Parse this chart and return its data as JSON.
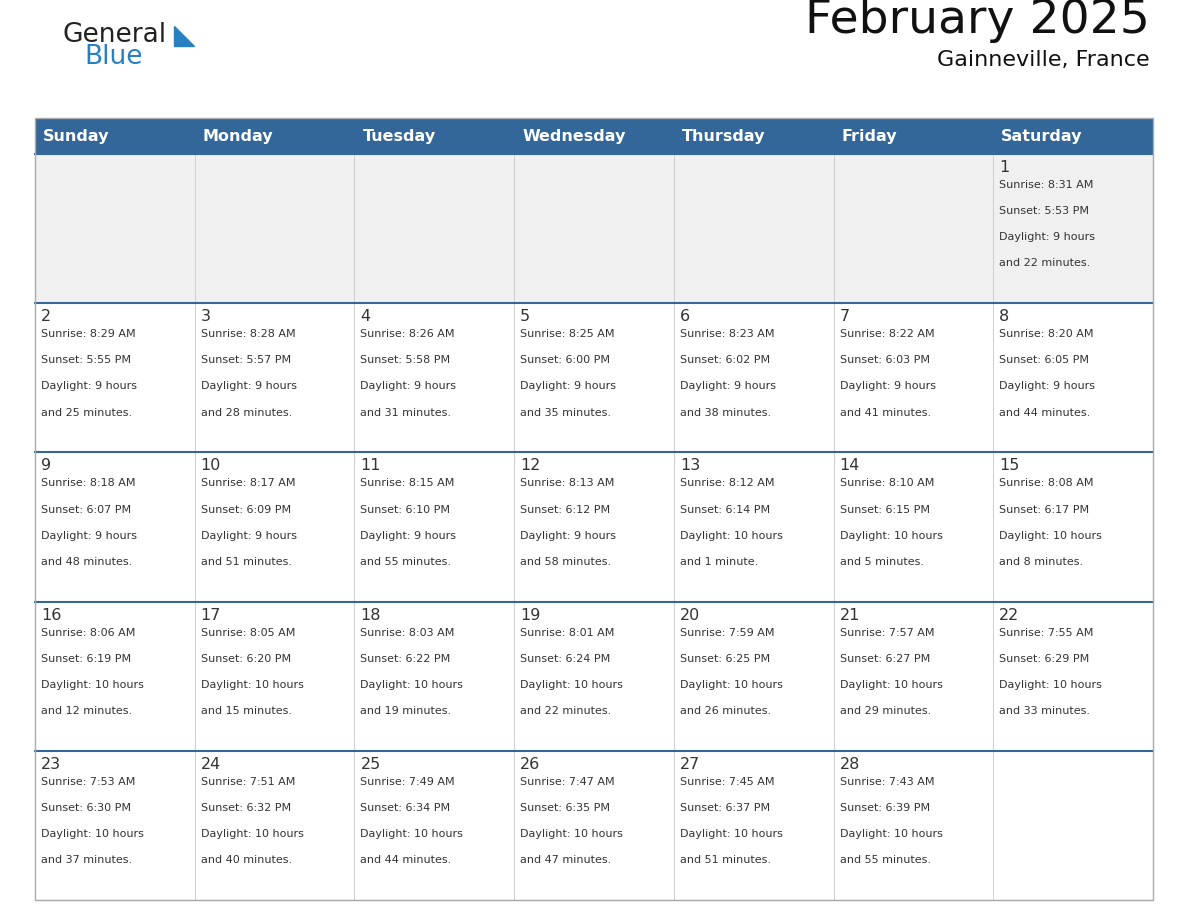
{
  "title": "February 2025",
  "subtitle": "Gainneville, France",
  "days_of_week": [
    "Sunday",
    "Monday",
    "Tuesday",
    "Wednesday",
    "Thursday",
    "Friday",
    "Saturday"
  ],
  "header_bg": "#336699",
  "header_text_color": "#FFFFFF",
  "cell_bg_light": "#F0F0F0",
  "cell_bg_white": "#FFFFFF",
  "divider_color": "#336699",
  "text_color": "#333333",
  "title_color": "#111111",
  "logo_color_general": "#222222",
  "logo_color_blue": "#2980C0",
  "logo_triangle_color": "#2980C0",
  "calendar_data": [
    [
      null,
      null,
      null,
      null,
      null,
      null,
      {
        "day": 1,
        "sunrise": "8:31 AM",
        "sunset": "5:53 PM",
        "daylight": "9 hours and 22 minutes."
      }
    ],
    [
      {
        "day": 2,
        "sunrise": "8:29 AM",
        "sunset": "5:55 PM",
        "daylight": "9 hours and 25 minutes."
      },
      {
        "day": 3,
        "sunrise": "8:28 AM",
        "sunset": "5:57 PM",
        "daylight": "9 hours and 28 minutes."
      },
      {
        "day": 4,
        "sunrise": "8:26 AM",
        "sunset": "5:58 PM",
        "daylight": "9 hours and 31 minutes."
      },
      {
        "day": 5,
        "sunrise": "8:25 AM",
        "sunset": "6:00 PM",
        "daylight": "9 hours and 35 minutes."
      },
      {
        "day": 6,
        "sunrise": "8:23 AM",
        "sunset": "6:02 PM",
        "daylight": "9 hours and 38 minutes."
      },
      {
        "day": 7,
        "sunrise": "8:22 AM",
        "sunset": "6:03 PM",
        "daylight": "9 hours and 41 minutes."
      },
      {
        "day": 8,
        "sunrise": "8:20 AM",
        "sunset": "6:05 PM",
        "daylight": "9 hours and 44 minutes."
      }
    ],
    [
      {
        "day": 9,
        "sunrise": "8:18 AM",
        "sunset": "6:07 PM",
        "daylight": "9 hours and 48 minutes."
      },
      {
        "day": 10,
        "sunrise": "8:17 AM",
        "sunset": "6:09 PM",
        "daylight": "9 hours and 51 minutes."
      },
      {
        "day": 11,
        "sunrise": "8:15 AM",
        "sunset": "6:10 PM",
        "daylight": "9 hours and 55 minutes."
      },
      {
        "day": 12,
        "sunrise": "8:13 AM",
        "sunset": "6:12 PM",
        "daylight": "9 hours and 58 minutes."
      },
      {
        "day": 13,
        "sunrise": "8:12 AM",
        "sunset": "6:14 PM",
        "daylight": "10 hours and 1 minute."
      },
      {
        "day": 14,
        "sunrise": "8:10 AM",
        "sunset": "6:15 PM",
        "daylight": "10 hours and 5 minutes."
      },
      {
        "day": 15,
        "sunrise": "8:08 AM",
        "sunset": "6:17 PM",
        "daylight": "10 hours and 8 minutes."
      }
    ],
    [
      {
        "day": 16,
        "sunrise": "8:06 AM",
        "sunset": "6:19 PM",
        "daylight": "10 hours and 12 minutes."
      },
      {
        "day": 17,
        "sunrise": "8:05 AM",
        "sunset": "6:20 PM",
        "daylight": "10 hours and 15 minutes."
      },
      {
        "day": 18,
        "sunrise": "8:03 AM",
        "sunset": "6:22 PM",
        "daylight": "10 hours and 19 minutes."
      },
      {
        "day": 19,
        "sunrise": "8:01 AM",
        "sunset": "6:24 PM",
        "daylight": "10 hours and 22 minutes."
      },
      {
        "day": 20,
        "sunrise": "7:59 AM",
        "sunset": "6:25 PM",
        "daylight": "10 hours and 26 minutes."
      },
      {
        "day": 21,
        "sunrise": "7:57 AM",
        "sunset": "6:27 PM",
        "daylight": "10 hours and 29 minutes."
      },
      {
        "day": 22,
        "sunrise": "7:55 AM",
        "sunset": "6:29 PM",
        "daylight": "10 hours and 33 minutes."
      }
    ],
    [
      {
        "day": 23,
        "sunrise": "7:53 AM",
        "sunset": "6:30 PM",
        "daylight": "10 hours and 37 minutes."
      },
      {
        "day": 24,
        "sunrise": "7:51 AM",
        "sunset": "6:32 PM",
        "daylight": "10 hours and 40 minutes."
      },
      {
        "day": 25,
        "sunrise": "7:49 AM",
        "sunset": "6:34 PM",
        "daylight": "10 hours and 44 minutes."
      },
      {
        "day": 26,
        "sunrise": "7:47 AM",
        "sunset": "6:35 PM",
        "daylight": "10 hours and 47 minutes."
      },
      {
        "day": 27,
        "sunrise": "7:45 AM",
        "sunset": "6:37 PM",
        "daylight": "10 hours and 51 minutes."
      },
      {
        "day": 28,
        "sunrise": "7:43 AM",
        "sunset": "6:39 PM",
        "daylight": "10 hours and 55 minutes."
      },
      null
    ]
  ]
}
